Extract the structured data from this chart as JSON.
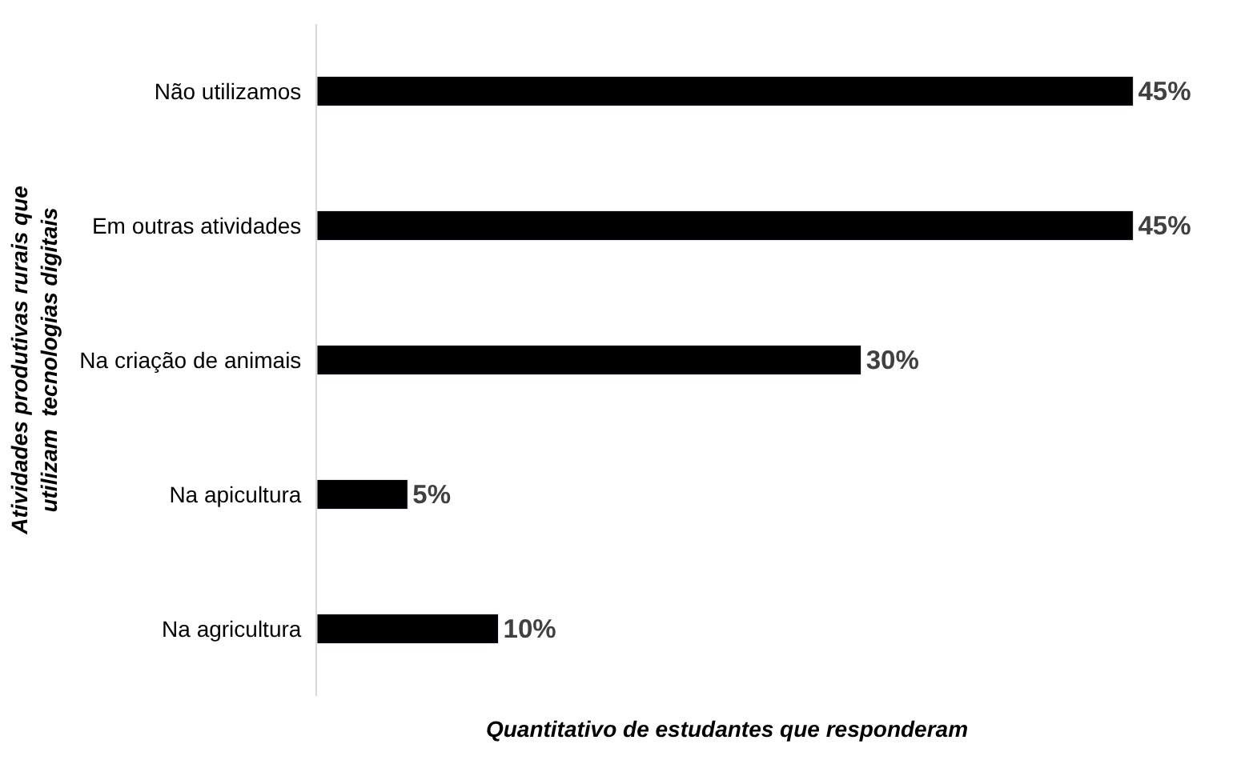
{
  "chart_data": {
    "type": "bar",
    "orientation": "horizontal",
    "categories": [
      "Não utilizamos",
      "Em outras atividades",
      "Na criação de animais",
      "Na apicultura",
      "Na agricultura"
    ],
    "values": [
      45,
      45,
      30,
      5,
      10
    ],
    "value_labels": [
      "45%",
      "45%",
      "30%",
      "5%",
      "10%"
    ],
    "color": "#000000",
    "xlabel": "Quantitativo de estudantes que responderam",
    "ylabel": "Atividades produtivas rurais que\nutilizam  tecnologias digitais"
  }
}
